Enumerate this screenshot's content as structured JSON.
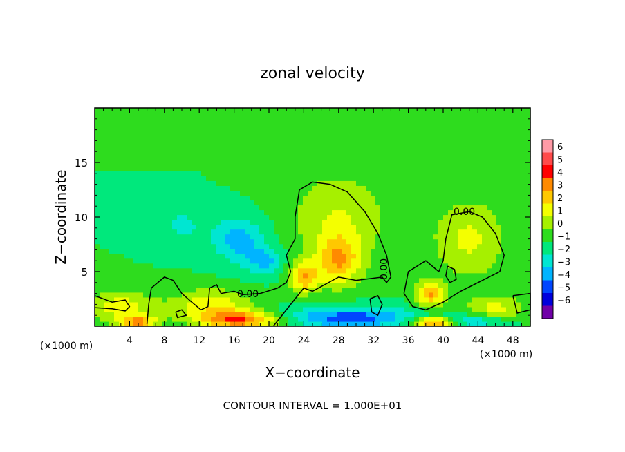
{
  "chart_data": {
    "type": "heatmap",
    "title": "zonal velocity",
    "xlabel": "X−coordinate",
    "ylabel": "Z−coordinate",
    "x_unit": "(×1000 m)",
    "y_unit": "(×1000 m)",
    "xlim": [
      0,
      50
    ],
    "ylim": [
      0,
      20
    ],
    "x_ticks": [
      4,
      8,
      12,
      16,
      20,
      24,
      28,
      32,
      36,
      40,
      44,
      48
    ],
    "x_tick_labels": [
      "4",
      "8",
      "12",
      "16",
      "20",
      "24",
      "28",
      "32",
      "36",
      "40",
      "44",
      "48"
    ],
    "y_ticks": [
      5,
      10,
      15
    ],
    "y_tick_labels": [
      "5",
      "10",
      "15"
    ],
    "footer": "CONTOUR INTERVAL = 1.000E+01",
    "contour_label": "0.00",
    "colorbar": {
      "labels": [
        "6",
        "5",
        "4",
        "3",
        "2",
        "1",
        "0",
        "−1",
        "−2",
        "−3",
        "−4",
        "−5",
        "−6"
      ],
      "levels": [
        6,
        5,
        4,
        3,
        2,
        1,
        0,
        -1,
        -2,
        -3,
        -4,
        -5,
        -6
      ],
      "colors": [
        "#ff9aa6",
        "#ff4a4a",
        "#ff0000",
        "#ff8a00",
        "#ffc800",
        "#f4ff00",
        "#a6f000",
        "#2edc1e",
        "#00e87c",
        "#00e6d2",
        "#00b4ff",
        "#0046ff",
        "#0000dc",
        "#7000a8"
      ]
    },
    "background_value": -1,
    "features": [
      {
        "x": 16.5,
        "z": 8.0,
        "sx": 2.2,
        "sz": 1.4,
        "value": -3.5
      },
      {
        "x": 19.5,
        "z": 6.0,
        "sx": 1.6,
        "sz": 0.9,
        "value": -3.2
      },
      {
        "x": 10.0,
        "z": 9.3,
        "sx": 1.8,
        "sz": 1.2,
        "value": -2.2
      },
      {
        "x": 28.0,
        "z": 6.0,
        "sx": 1.8,
        "sz": 1.6,
        "value": 2.5
      },
      {
        "x": 38.5,
        "z": 3.0,
        "sx": 1.2,
        "sz": 0.8,
        "value": 3.0
      },
      {
        "x": 43.0,
        "z": 8.0,
        "sx": 3.0,
        "sz": 2.6,
        "value": 1.2
      },
      {
        "x": 28.0,
        "z": 10.0,
        "sx": 4.0,
        "sz": 3.0,
        "value": 1.0
      },
      {
        "x": 24.0,
        "z": 4.5,
        "sx": 1.2,
        "sz": 1.0,
        "value": 2.6
      },
      {
        "x": 17.0,
        "z": 0.6,
        "sx": 3.5,
        "sz": 0.6,
        "value": 4.0
      },
      {
        "x": 29.0,
        "z": 0.8,
        "sx": 6.0,
        "sz": 0.7,
        "value": -4.5
      },
      {
        "x": 39.0,
        "z": 0.4,
        "sx": 2.0,
        "sz": 0.4,
        "value": 5.5
      },
      {
        "x": 42.0,
        "z": 0.5,
        "sx": 3.5,
        "sz": 0.4,
        "value": -4.0
      },
      {
        "x": 5.0,
        "z": 0.4,
        "sx": 1.5,
        "sz": 0.4,
        "value": 3.0
      },
      {
        "x": 3.0,
        "z": 1.8,
        "sx": 3.0,
        "sz": 1.0,
        "value": 1.5
      },
      {
        "x": 13.5,
        "z": 2.0,
        "sx": 3.0,
        "sz": 1.0,
        "value": 1.8
      },
      {
        "x": 46.0,
        "z": 1.6,
        "sx": 2.5,
        "sz": 0.9,
        "value": 1.2
      }
    ],
    "contours_zero": [
      [
        [
          0,
          2.8
        ],
        [
          2,
          2.2
        ],
        [
          3.5,
          2.4
        ],
        [
          4,
          1.8
        ],
        [
          3.5,
          1.4
        ],
        [
          2,
          1.6
        ],
        [
          0,
          1.7
        ]
      ],
      [
        [
          6,
          0.2
        ],
        [
          6.2,
          2
        ],
        [
          6.5,
          3.5
        ],
        [
          8,
          4.5
        ],
        [
          9,
          4.2
        ],
        [
          10,
          3
        ],
        [
          11,
          2.3
        ],
        [
          12.2,
          1.5
        ],
        [
          13,
          1.8
        ],
        [
          13.2,
          3.5
        ],
        [
          14,
          3.8
        ],
        [
          14.5,
          3
        ],
        [
          16,
          3.2
        ],
        [
          17,
          2.9
        ],
        [
          19,
          3
        ],
        [
          21,
          3.5
        ],
        [
          22,
          4
        ],
        [
          22.5,
          5
        ],
        [
          22,
          6.5
        ],
        [
          23,
          8
        ],
        [
          23,
          10
        ],
        [
          23.5,
          12.5
        ],
        [
          25,
          13.2
        ],
        [
          27,
          13
        ],
        [
          29,
          12.3
        ],
        [
          31,
          10.5
        ],
        [
          32.5,
          8.5
        ],
        [
          33.5,
          6.5
        ],
        [
          34,
          4.5
        ],
        [
          33.5,
          4
        ],
        [
          33,
          4.5
        ],
        [
          30,
          4.2
        ],
        [
          28,
          4.5
        ],
        [
          25,
          3.2
        ],
        [
          24,
          3.5
        ],
        [
          22.5,
          2
        ],
        [
          21,
          0.5
        ],
        [
          20.5,
          0
        ]
      ],
      [
        [
          35.5,
          3
        ],
        [
          36,
          5
        ],
        [
          38,
          6
        ],
        [
          39.5,
          5
        ],
        [
          40,
          6
        ],
        [
          40.3,
          8
        ],
        [
          41,
          10.2
        ],
        [
          43,
          10.5
        ],
        [
          44.5,
          10
        ],
        [
          46,
          8.5
        ],
        [
          47,
          6.5
        ],
        [
          46.5,
          5
        ],
        [
          44,
          4
        ],
        [
          42,
          3.2
        ],
        [
          40,
          2.2
        ],
        [
          38,
          1.5
        ],
        [
          36.5,
          1.8
        ],
        [
          35.5,
          3
        ]
      ],
      [
        [
          40.5,
          5.5
        ],
        [
          41.3,
          5.2
        ],
        [
          41.5,
          4.3
        ],
        [
          40.8,
          4
        ],
        [
          40.3,
          4.6
        ],
        [
          40.5,
          5.5
        ]
      ],
      [
        [
          9.3,
          1.3
        ],
        [
          10,
          1.5
        ],
        [
          10.5,
          1
        ],
        [
          9.5,
          0.8
        ],
        [
          9.3,
          1.3
        ]
      ],
      [
        [
          31.6,
          2.5
        ],
        [
          32.5,
          2.8
        ],
        [
          33,
          2
        ],
        [
          32.5,
          1
        ],
        [
          31.8,
          1.3
        ],
        [
          31.6,
          2.5
        ]
      ],
      [
        [
          48,
          2.8
        ],
        [
          50,
          3
        ],
        [
          50,
          1.5
        ],
        [
          48.5,
          1.2
        ],
        [
          48,
          2.8
        ]
      ]
    ]
  }
}
